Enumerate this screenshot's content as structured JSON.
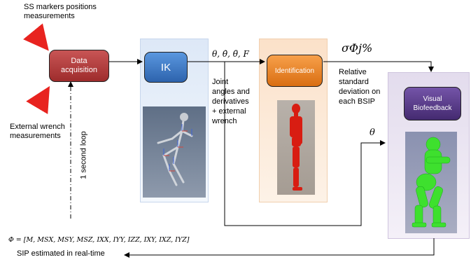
{
  "labels": {
    "ss_markers": [
      "SS markers positions",
      "measurements"
    ],
    "external_wrench": [
      "External wrench",
      "measurements"
    ],
    "loop": "1 second loop",
    "joint_info": [
      "Joint",
      "angles and",
      "derivatives",
      "+ external",
      "wrench"
    ],
    "relative_std": [
      "Relative",
      "standard",
      "deviation on",
      "each BSIP"
    ],
    "phi_formula": "Φ = [M, MSX, MSY, MSZ, IXX, IYY, IZZ, IXY, IXZ, IYZ]",
    "sip_estimated": "SIP estimated in real-time",
    "theta_vars": "θ, θ̇, θ̈, F",
    "sigma": "σΦj%",
    "theta": "θ"
  },
  "boxes": {
    "data_acquisition": [
      "Data",
      "acquisition"
    ],
    "ik": "IK",
    "identification": "Identification",
    "visual_biofeedback": [
      "Visual",
      "Biofeedback"
    ]
  },
  "colors": {
    "data_acq": "#b33a3a",
    "ik": "#3d7cc9",
    "identification": "#f08a24",
    "visual": "#5a3d8c",
    "arrow_red": "#e8231f"
  }
}
